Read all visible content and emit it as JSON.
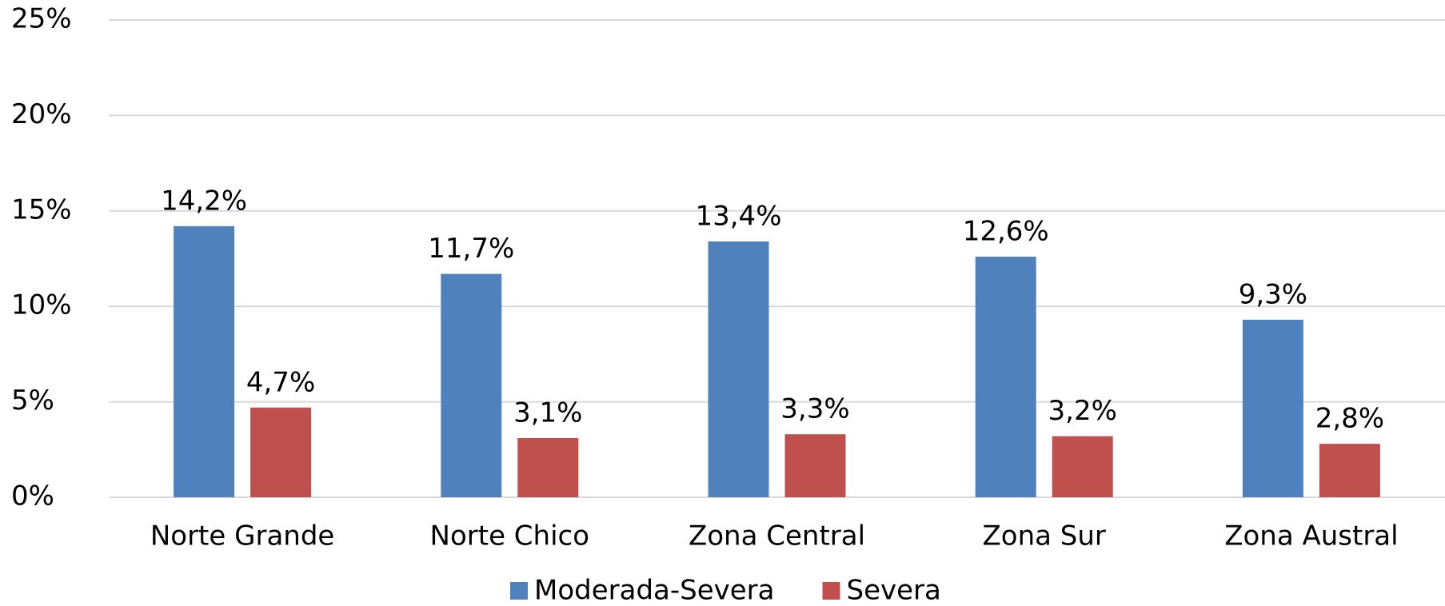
{
  "chart_data": {
    "type": "bar",
    "categories": [
      "Norte Grande",
      "Norte Chico",
      "Zona Central",
      "Zona Sur",
      "Zona Austral"
    ],
    "series": [
      {
        "name": "Moderada-Severa",
        "color": "#4f81bd",
        "values": [
          14.2,
          11.7,
          13.4,
          12.6,
          9.3
        ],
        "value_labels": [
          "14,2%",
          "11,7%",
          "13,4%",
          "12,6%",
          "9,3%"
        ]
      },
      {
        "name": "Severa",
        "color": "#c0504d",
        "values": [
          4.7,
          3.1,
          3.3,
          3.2,
          2.8
        ],
        "value_labels": [
          "4,7%",
          "3,1%",
          "3,3%",
          "3,2%",
          "2,8%"
        ]
      }
    ],
    "ylim": [
      0,
      25
    ],
    "yticks": [
      {
        "value": 0,
        "label": "0%"
      },
      {
        "value": 5,
        "label": "5%"
      },
      {
        "value": 10,
        "label": "10%"
      },
      {
        "value": 15,
        "label": "15%"
      },
      {
        "value": 20,
        "label": "20%"
      },
      {
        "value": 25,
        "label": "25%"
      }
    ],
    "grid": true,
    "legend": "bottom"
  }
}
